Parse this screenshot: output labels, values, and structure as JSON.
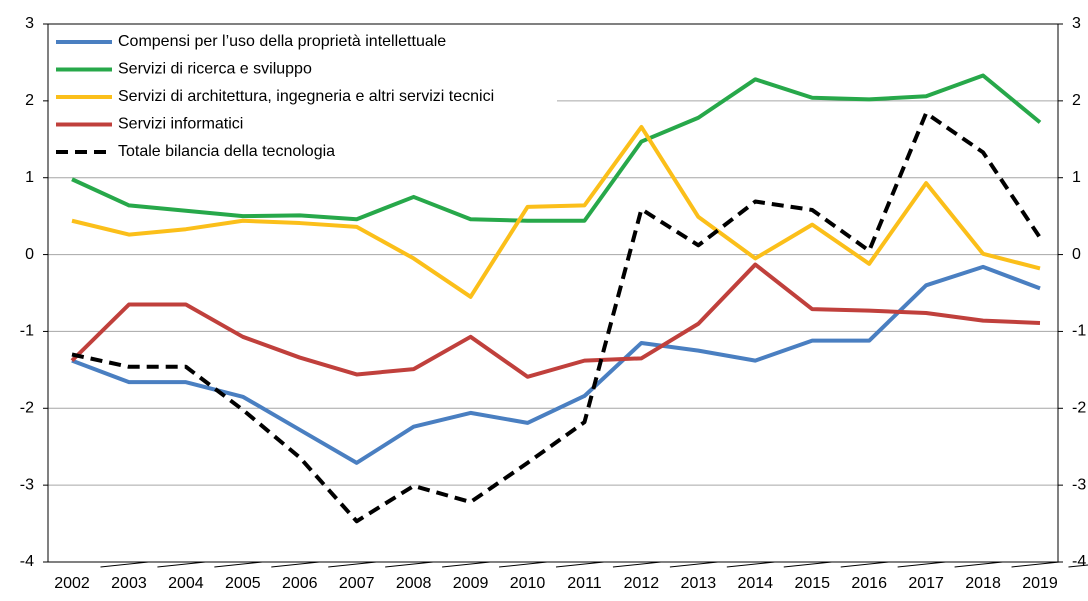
{
  "chart_data": {
    "type": "line",
    "categories": [
      "2002",
      "2003",
      "2004",
      "2005",
      "2006",
      "2007",
      "2008",
      "2009",
      "2010",
      "2011",
      "2012",
      "2013",
      "2014",
      "2015",
      "2016",
      "2017",
      "2018",
      "2019"
    ],
    "series": [
      {
        "name": "Compensi per l’uso della proprietà intellettuale",
        "color": "#4a7fc1",
        "values": [
          -1.38,
          -1.66,
          -1.66,
          -1.85,
          -2.28,
          -2.71,
          -2.24,
          -2.06,
          -2.19,
          -1.84,
          -1.15,
          -1.25,
          -1.38,
          -1.12,
          -1.12,
          -0.4,
          -0.16,
          -0.44
        ]
      },
      {
        "name": "Servizi di ricerca e sviluppo",
        "color": "#27a84a",
        "values": [
          0.98,
          0.64,
          0.57,
          0.5,
          0.51,
          0.46,
          0.75,
          0.46,
          0.44,
          0.44,
          1.47,
          1.78,
          2.28,
          2.04,
          2.02,
          2.06,
          2.33,
          1.72
        ]
      },
      {
        "name": "Servizi di architettura, ingegneria e altri servizi tecnici",
        "color": "#fbbf1a",
        "values": [
          0.44,
          0.26,
          0.33,
          0.44,
          0.41,
          0.36,
          -0.05,
          -0.55,
          0.62,
          0.64,
          1.66,
          0.49,
          -0.05,
          0.39,
          -0.12,
          0.93,
          0.01,
          -0.18
        ]
      },
      {
        "name": "Servizi informatici",
        "color": "#c0403c",
        "values": [
          -1.38,
          -0.65,
          -0.65,
          -1.07,
          -1.34,
          -1.56,
          -1.49,
          -1.07,
          -1.59,
          -1.38,
          -1.35,
          -0.9,
          -0.13,
          -0.71,
          -0.73,
          -0.76,
          -0.86,
          -0.89
        ]
      },
      {
        "name": "Totale bilancia della tecnologia",
        "color": "#000000",
        "dashed": true,
        "values": [
          -1.3,
          -1.46,
          -1.46,
          -2.02,
          -2.64,
          -3.47,
          -3.01,
          -3.22,
          -2.71,
          -2.18,
          0.59,
          0.12,
          0.69,
          0.58,
          0.05,
          1.84,
          1.33,
          0.22
        ]
      }
    ],
    "ylim": [
      -4,
      3
    ],
    "yticks": [
      -4,
      -3,
      -2,
      -1,
      0,
      1,
      2,
      3
    ],
    "y2lim": [
      -4,
      3
    ],
    "y2ticks": [
      -4,
      -3,
      -2,
      -1,
      0,
      1,
      2,
      3
    ],
    "grid": true,
    "legend": "upper left"
  }
}
